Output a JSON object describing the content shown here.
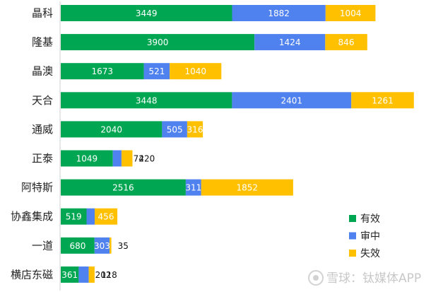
{
  "chart_data": {
    "type": "bar",
    "orientation": "horizontal",
    "stacked": true,
    "categories": [
      "晶科",
      "隆基",
      "晶澳",
      "天合",
      "通威",
      "正泰",
      "阿特斯",
      "协鑫集成",
      "一道",
      "横店东磁"
    ],
    "series": [
      {
        "name": "有效",
        "color": "#00a651",
        "values": [
          3449,
          3900,
          1673,
          3448,
          2040,
          1049,
          2516,
          519,
          680,
          361
        ]
      },
      {
        "name": "审中",
        "color": "#4f81ef",
        "values": [
          1882,
          1424,
          521,
          2401,
          505,
          174,
          311,
          164,
          303,
          202
        ]
      },
      {
        "name": "失效",
        "color": "#ffc000",
        "values": [
          1004,
          846,
          1040,
          1261,
          316,
          220,
          1852,
          456,
          35,
          118
        ]
      }
    ],
    "grid": false,
    "legend_position": "bottom-right"
  },
  "watermark": {
    "text": "雪球：钛媒体APP"
  }
}
